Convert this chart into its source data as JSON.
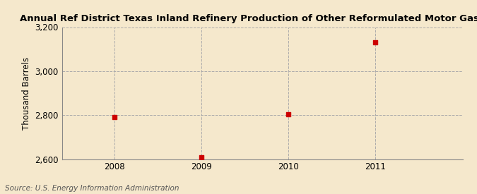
{
  "title": "Annual Ref District Texas Inland Refinery Production of Other Reformulated Motor Gasoline",
  "ylabel": "Thousand Barrels",
  "source": "Source: U.S. Energy Information Administration",
  "x": [
    2008,
    2009,
    2010,
    2011
  ],
  "y": [
    2790,
    2607,
    2805,
    3130
  ],
  "xlim": [
    2007.4,
    2012.0
  ],
  "ylim": [
    2600,
    3200
  ],
  "yticks": [
    2600,
    2800,
    3000,
    3200
  ],
  "ytick_labels": [
    "2,600",
    "2,800",
    "3,000",
    "3,200"
  ],
  "xticks": [
    2008,
    2009,
    2010,
    2011
  ],
  "marker_color": "#cc0000",
  "marker_size": 4,
  "grid_color": "#aaaaaa",
  "bg_color": "#f5e8cc",
  "title_fontsize": 9.5,
  "axis_fontsize": 8.5,
  "source_fontsize": 7.5
}
